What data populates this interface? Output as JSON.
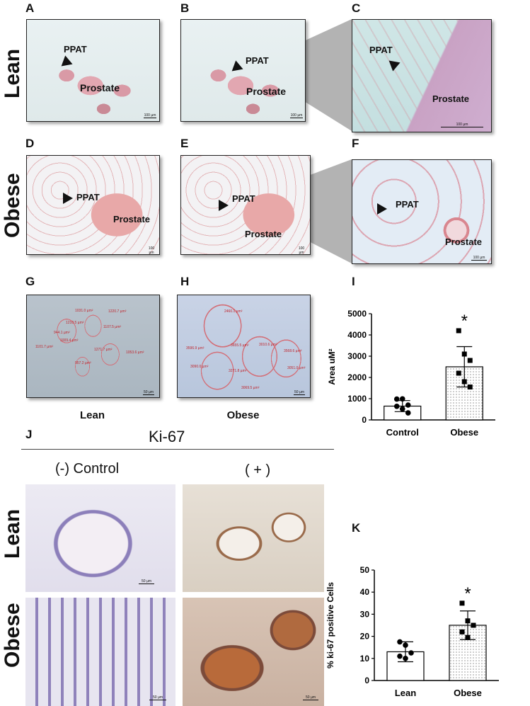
{
  "panels": {
    "A": "A",
    "B": "B",
    "C": "C",
    "D": "D",
    "E": "E",
    "F": "F",
    "G": "G",
    "H": "H",
    "I": "I",
    "J": "J",
    "K": "K"
  },
  "row_labels": {
    "lean": "Lean",
    "obese": "Obese"
  },
  "tissue_labels": {
    "ppat": "PPAT",
    "prostate": "Prostate"
  },
  "scale_bars": {
    "s100": "100 µm",
    "s50": "50 µm"
  },
  "adipocyte_sizes": {
    "lean": [
      "1031.0 µm²",
      "1220.7 µm²",
      "1210.5 µm²",
      "1107.5 µm²",
      "944.1 µm²",
      "1009.4 µm²",
      "1101.7 µm²",
      "1271.7 µm²",
      "1053.6 µm²",
      "957.2 µm²"
    ],
    "obese": [
      "2460.1 µm²",
      "3655.5 µm²",
      "3596.9 µm²",
      "3010.6 µm²",
      "3568.6 µm²",
      "3271.8 µm²",
      "3090.0 µm²",
      "3051.0 µm²",
      "3069.5 µm²"
    ]
  },
  "captions": {
    "g": "Lean",
    "h": "Obese"
  },
  "ki67": {
    "title": "Ki-67",
    "neg": "(-) Control",
    "pos": "( + )"
  },
  "chart_data": [
    {
      "panel": "I",
      "type": "bar",
      "categories": [
        "Control",
        "Obese"
      ],
      "values": [
        650,
        2500
      ],
      "errors": [
        260,
        950
      ],
      "points": [
        [
          980,
          990,
          700,
          640,
          520,
          330
        ],
        [
          4200,
          3100,
          2800,
          2200,
          1800,
          1550
        ]
      ],
      "fill_patterns": [
        "none",
        "dotted"
      ],
      "markers": [
        "circle",
        "square"
      ],
      "ylabel": "Area uM²",
      "ylim": [
        0,
        5000
      ],
      "yticks": [
        0,
        1000,
        2000,
        3000,
        4000,
        5000
      ],
      "significance": [
        "",
        "*"
      ],
      "grid": false
    },
    {
      "panel": "K",
      "type": "bar",
      "categories": [
        "Lean",
        "Obese"
      ],
      "values": [
        13,
        25
      ],
      "errors": [
        4.5,
        6.5
      ],
      "points": [
        [
          17.5,
          16,
          12.5,
          11,
          10
        ],
        [
          35,
          27,
          25,
          22,
          19.5
        ]
      ],
      "fill_patterns": [
        "none",
        "dotted"
      ],
      "markers": [
        "circle",
        "square"
      ],
      "ylabel": "% ki-67 positive Cells",
      "ylim": [
        0,
        50
      ],
      "yticks": [
        0,
        10,
        20,
        30,
        40,
        50
      ],
      "significance": [
        "",
        "*"
      ],
      "grid": false
    }
  ]
}
